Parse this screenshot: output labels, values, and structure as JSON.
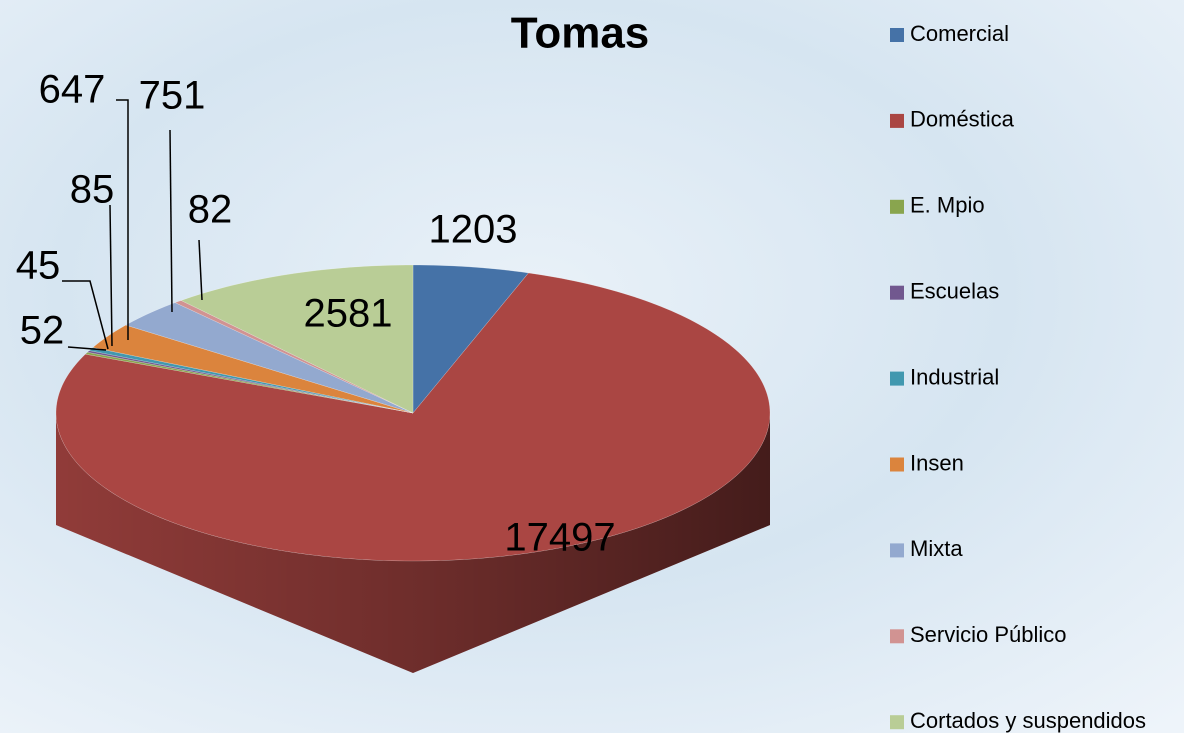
{
  "chart_data": {
    "type": "pie3d",
    "title": "Tomas",
    "categories": [
      "Comercial",
      "Doméstica",
      "E. Mpio",
      "Escuelas",
      "Industrial",
      "Insen",
      "Mixta",
      "Servicio Público",
      "Cortados y suspendidos"
    ],
    "values": [
      1203,
      17497,
      52,
      45,
      85,
      647,
      751,
      82,
      2581
    ],
    "colors": [
      "#4572a7",
      "#aa4643",
      "#89a54e",
      "#71588f",
      "#4198af",
      "#db843d",
      "#93a9cf",
      "#d19392",
      "#b9cd96"
    ],
    "legend": "right"
  }
}
